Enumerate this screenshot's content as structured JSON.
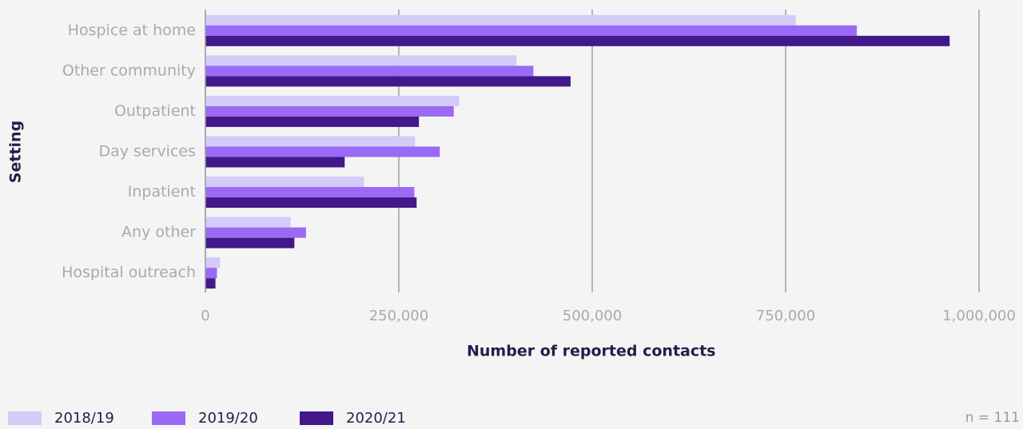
{
  "chart_data": {
    "type": "bar",
    "orientation": "horizontal",
    "xlabel": "Number of reported contacts",
    "ylabel": "Setting",
    "note": "n = 111",
    "categories": [
      "Hospice at home",
      "Other community",
      "Outpatient",
      "Day services",
      "Inpatient",
      "Any other",
      "Hospital outreach"
    ],
    "series": [
      {
        "name": "2018/19",
        "color": "#d3cbf8",
        "values": [
          763000,
          402000,
          328000,
          271000,
          205000,
          110000,
          19000
        ]
      },
      {
        "name": "2019/20",
        "color": "#9a6af6",
        "values": [
          842000,
          424000,
          321000,
          303000,
          270000,
          130000,
          15000
        ]
      },
      {
        "name": "2020/21",
        "color": "#43188a",
        "values": [
          962000,
          472000,
          276000,
          180000,
          273000,
          115000,
          13000
        ]
      }
    ],
    "xlim": [
      0,
      1000000
    ],
    "xticks": [
      0,
      {
        "value": 250000,
        "label": "250,000"
      },
      {
        "value": 500000,
        "label": "500,000"
      },
      {
        "value": 750000,
        "label": "750,000"
      },
      {
        "value": 1000000,
        "label": "1,000,000"
      }
    ],
    "grid": true,
    "legend": "bottom-left"
  }
}
